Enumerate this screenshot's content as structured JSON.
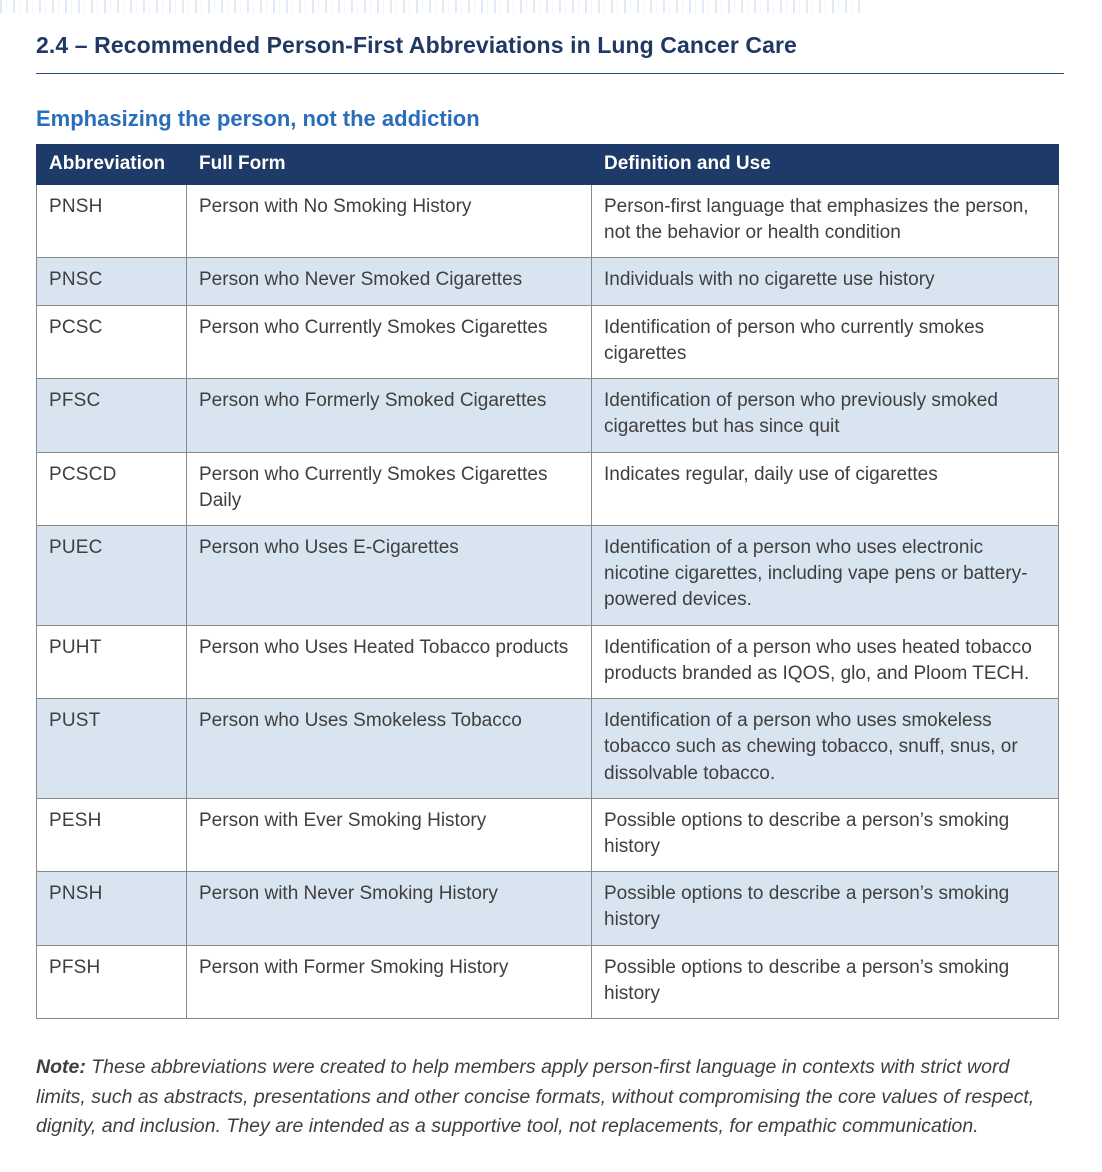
{
  "page": {
    "title": "2.4 – Recommended Person-First Abbreviations in Lung Cancer Care",
    "subtitle": "Emphasizing the person, not the addiction"
  },
  "colors": {
    "title_navy": "#1f3864",
    "subtitle_blue": "#2a6ebb",
    "header_bg": "#1e3a68",
    "row_shaded": "#d9e4f1",
    "border_gray": "#8a8a8a"
  },
  "table": {
    "headers": [
      "Abbreviation",
      "Full Form",
      "Definition and Use"
    ],
    "rows": [
      {
        "abbr": "PNSH",
        "full_form": "Person with No Smoking History",
        "definition": "Person-first language that emphasizes the person, not the behavior or health condition"
      },
      {
        "abbr": "PNSC",
        "full_form": "Person who Never Smoked Cigarettes",
        "definition": "Individuals with no cigarette use history"
      },
      {
        "abbr": "PCSC",
        "full_form": "Person who Currently Smokes Cigarettes",
        "definition": "Identification of person who currently smokes cigarettes"
      },
      {
        "abbr": "PFSC",
        "full_form": "Person who Formerly Smoked Cigarettes",
        "definition": "Identification of person who previously smoked cigarettes but has since quit"
      },
      {
        "abbr": "PCSCD",
        "full_form": "Person who Currently Smokes Cigarettes Daily",
        "definition": "Indicates regular, daily use of cigarettes"
      },
      {
        "abbr": "PUEC",
        "full_form": "Person who Uses E-Cigarettes",
        "definition": "Identification of a person who uses electronic nicotine cigarettes, including vape pens or battery-powered devices."
      },
      {
        "abbr": "PUHT",
        "full_form": "Person who Uses Heated Tobacco products",
        "definition": "Identification of a person who uses heated tobacco products branded as IQOS, glo, and Ploom TECH."
      },
      {
        "abbr": "PUST",
        "full_form": "Person who Uses Smokeless Tobacco",
        "definition": "Identification of a person who uses smokeless tobacco such as chewing tobacco, snuff, snus, or dissolvable tobacco."
      },
      {
        "abbr": "PESH",
        "full_form": "Person with Ever Smoking History",
        "definition": "Possible options to describe a person’s smoking history"
      },
      {
        "abbr": "PNSH",
        "full_form": "Person with Never Smoking History",
        "definition": "Possible options to describe a person’s smoking history"
      },
      {
        "abbr": "PFSH",
        "full_form": "Person with Former Smoking History",
        "definition": "Possible options to describe a person’s smoking history"
      }
    ]
  },
  "note": {
    "label": "Note:",
    "text": "These abbreviations were created to help members apply person-first language in contexts with strict word limits, such as abstracts, presentations and other concise formats, without compromising the core values of respect, dignity, and inclusion. They are intended as a supportive tool, not replacements, for empathic communication."
  }
}
